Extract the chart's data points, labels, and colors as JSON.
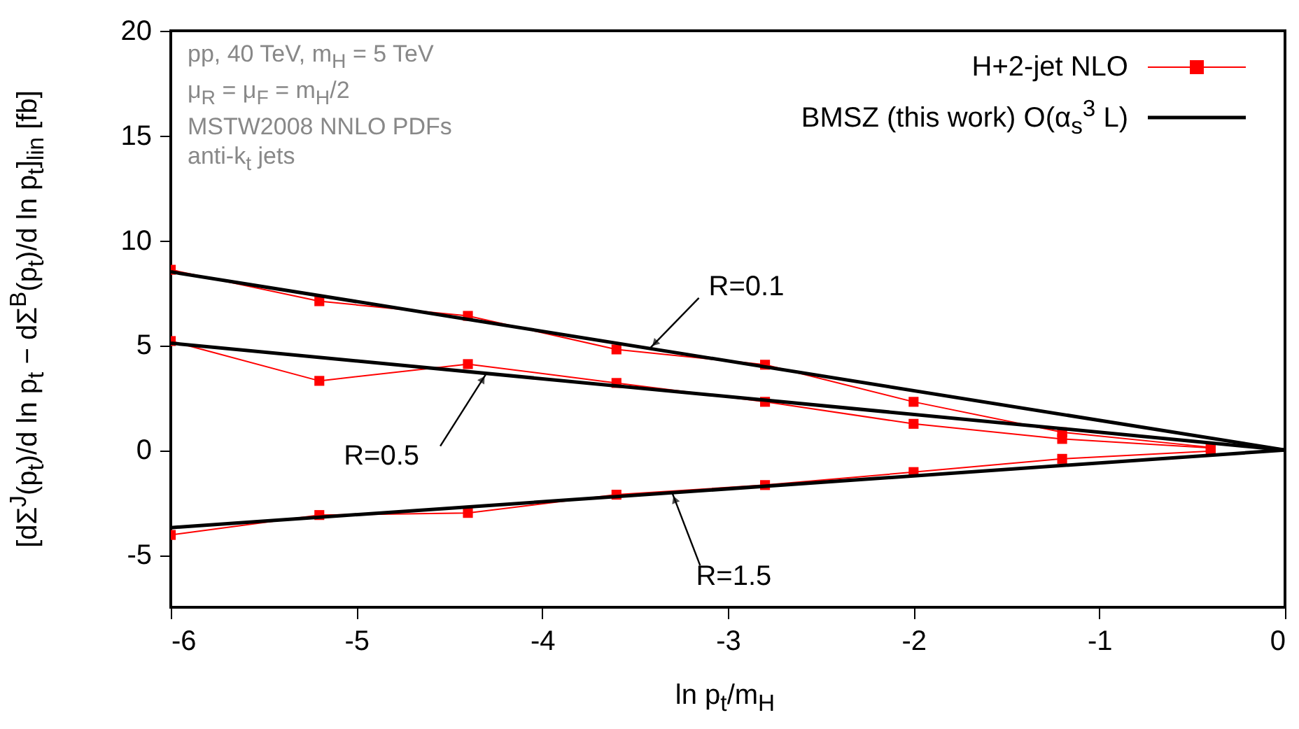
{
  "chart_data": {
    "type": "line",
    "xlabel": "ln p$_{t}$/m$_{H}$",
    "ylabel": "[dΣ$^{J}$(p$_{t}$)/d ln p$_{t}$ − dΣ$^{B}$(p$_{t}$)/d ln p$_{t}$]$_{lin}$ [fb]",
    "xlim": [
      -6,
      0
    ],
    "xticks": [
      -6,
      -5,
      -4,
      -3,
      -2,
      -1,
      0
    ],
    "ylim": [
      -7.5,
      20
    ],
    "yticks": [
      -5,
      0,
      5,
      10,
      15,
      20
    ],
    "grid": false,
    "legend": "top right",
    "series": [
      {
        "name": "H+2-jet NLO",
        "color": "#ff0000",
        "marker": "square",
        "x": [
          -6,
          -5.2,
          -4.4,
          -3.6,
          -2.8,
          -2,
          -1.2,
          -0.4
        ],
        "values": [
          8.6,
          7.1,
          6.4,
          4.8,
          4.07,
          2.3,
          0.85,
          0.13
        ]
      },
      {
        "color": "#ff0000",
        "marker": "square",
        "x": [
          -6,
          -5.2,
          -4.4,
          -3.6,
          -2.8,
          -2,
          -1.2,
          -0.4
        ],
        "values": [
          5.2,
          3.3,
          4.1,
          3.2,
          2.3,
          1.25,
          0.53,
          0.1
        ]
      },
      {
        "color": "#ff0000",
        "marker": "square",
        "x": [
          -6,
          -5.2,
          -4.4,
          -3.6,
          -2.8,
          -2,
          -1.2,
          -0.4
        ],
        "values": [
          -4.05,
          -3.1,
          -3.0,
          -2.13,
          -1.67,
          -1.05,
          -0.42,
          -0.05
        ]
      },
      {
        "name": "BMSZ (this work) O(α$_{s}$$^{3}$ L)",
        "color": "#000000",
        "marker": "none",
        "x": [
          -6,
          0
        ],
        "values": [
          8.5,
          0
        ]
      },
      {
        "color": "#000000",
        "marker": "none",
        "x": [
          -6,
          0
        ],
        "values": [
          5.1,
          0
        ]
      },
      {
        "color": "#000000",
        "marker": "none",
        "x": [
          -6,
          0
        ],
        "values": [
          -3.7,
          0
        ]
      }
    ],
    "annotations": [
      "pp, 40 TeV, m$_{H}$ = 5 TeV",
      "μ$_{R}$ = μ$_{F}$  = m$_{H}$/2",
      "MSTW2008 NNLO PDFs",
      "anti-k$_{t}$ jets",
      {
        "text": "R=0.1",
        "x": -3.42,
        "y": 4.85
      },
      {
        "text": "R=0.5",
        "x": -4.3,
        "y": 3.66
      },
      {
        "text": "R=1.5",
        "x": -3.3,
        "y": -2.04
      }
    ]
  }
}
